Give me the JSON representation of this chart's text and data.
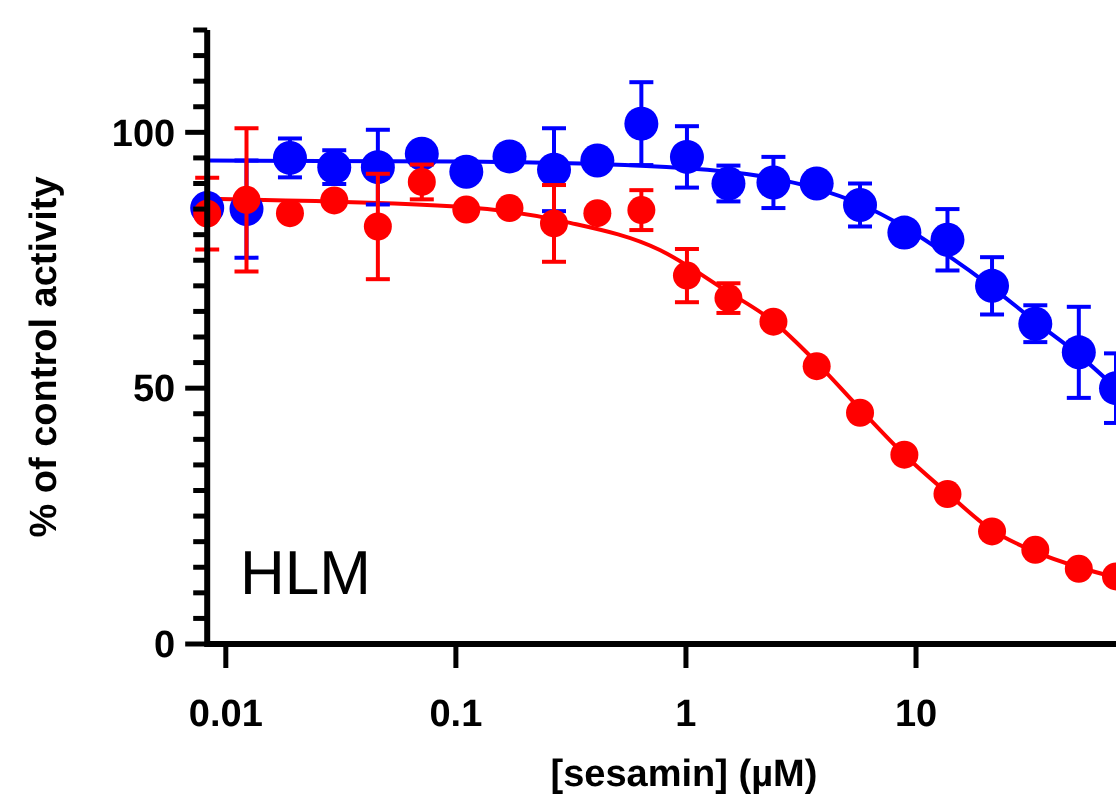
{
  "chart_data": {
    "type": "scatter",
    "xlabel": "[sesamin] (µM)",
    "ylabel": "% of control activity",
    "annotations": [
      "HLM"
    ],
    "log": "x",
    "grid": false,
    "marker": "circle",
    "xlim": [
      0.0083,
      74
    ],
    "xticks": [
      0.01,
      0.1,
      1,
      10
    ],
    "ylim": [
      0,
      120
    ],
    "yticks": [
      0,
      {
        "value": 5,
        "label": null
      },
      {
        "value": 10,
        "label": null
      },
      {
        "value": 15,
        "label": null
      },
      {
        "value": 20,
        "label": null
      },
      {
        "value": 25,
        "label": null
      },
      {
        "value": 30,
        "label": null
      },
      {
        "value": 35,
        "label": null
      },
      {
        "value": 40,
        "label": null
      },
      {
        "value": 45,
        "label": null
      },
      50,
      {
        "value": 55,
        "label": null
      },
      {
        "value": 60,
        "label": null
      },
      {
        "value": 65,
        "label": null
      },
      {
        "value": 70,
        "label": null
      },
      {
        "value": 75,
        "label": null
      },
      {
        "value": 80,
        "label": null
      },
      {
        "value": 85,
        "label": null
      },
      {
        "value": 90,
        "label": null
      },
      {
        "value": 95,
        "label": null
      },
      100,
      {
        "value": 105,
        "label": null
      },
      {
        "value": 110,
        "label": null
      },
      {
        "value": 115,
        "label": null
      },
      {
        "value": 120,
        "label": null
      }
    ],
    "series": [
      {
        "type": "line",
        "marker": "none",
        "color": "#0000ff",
        "x": [
          0.0083,
          0.1,
          1,
          2.4,
          3.7,
          5.7,
          8.9,
          13.7,
          21,
          33,
          51,
          74
        ],
        "values": [
          94.5,
          94.3,
          93,
          91,
          89,
          86,
          81.5,
          76,
          70,
          63,
          56.5,
          50
        ]
      },
      {
        "type": "line",
        "marker": "none",
        "color": "#ff0000",
        "x": [
          0.0083,
          0.1,
          0.3,
          0.77,
          1.5,
          2.4,
          3.7,
          5.7,
          8.9,
          13.7,
          21,
          33,
          51,
          74
        ],
        "values": [
          87,
          85.5,
          82.5,
          77,
          69,
          63,
          55,
          46,
          37,
          29.5,
          22.5,
          18,
          15,
          13
        ]
      },
      {
        "color": "#0000ff",
        "x": [
          0.0083,
          0.0123,
          0.019,
          0.0296,
          0.0458,
          0.0711,
          0.111,
          0.171,
          0.267,
          0.412,
          0.64,
          1.01,
          1.53,
          2.4,
          3.7,
          5.71,
          8.9,
          13.7,
          21.4,
          33,
          51,
          74
        ],
        "values": [
          85.2,
          85,
          95,
          93.2,
          93.2,
          95.8,
          92.3,
          95.3,
          92.7,
          94.5,
          101.7,
          95.2,
          90,
          90.2,
          90,
          85.8,
          80.4,
          79,
          70,
          62.6,
          57,
          50
        ],
        "errors": [
          null,
          9.5,
          3.8,
          3.3,
          7.3,
          null,
          null,
          null,
          8.1,
          null,
          8.1,
          6,
          3.5,
          5,
          null,
          4.2,
          null,
          6,
          5.6,
          3.6,
          8.9,
          6.8
        ]
      },
      {
        "color": "#ff0000",
        "x": [
          0.0083,
          0.0123,
          0.019,
          0.0296,
          0.0458,
          0.0711,
          0.111,
          0.171,
          0.267,
          0.412,
          0.64,
          1.01,
          1.53,
          2.4,
          3.7,
          5.71,
          8.9,
          13.7,
          21.4,
          33,
          51,
          74
        ],
        "values": [
          84.1,
          86.8,
          84.2,
          86.7,
          81.6,
          90.3,
          84.9,
          85.2,
          82.2,
          84.2,
          84.8,
          72,
          67.6,
          63,
          54.3,
          45.2,
          37,
          29.3,
          22,
          18.4,
          14.7,
          13.2
        ],
        "errors": [
          7,
          14,
          null,
          null,
          10.3,
          3.4,
          null,
          null,
          7.5,
          null,
          3.9,
          5.2,
          2.9,
          null,
          null,
          null,
          null,
          null,
          null,
          null,
          null,
          null
        ]
      }
    ]
  }
}
